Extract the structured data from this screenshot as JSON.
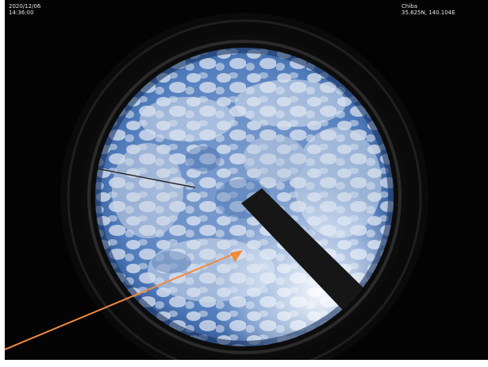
{
  "overlay": {
    "date": "2020/12/06",
    "time": "14:36:00",
    "location": "Chiba",
    "coordinates": "35.625N, 140.104E"
  },
  "colors": {
    "sky": "#5e86c2",
    "cloud": "#dfe6f0",
    "background": "#030303",
    "arrow": "#f28a3c",
    "shadow_band": "#161616"
  },
  "scene": {
    "subject": "all-sky camera image"
  }
}
